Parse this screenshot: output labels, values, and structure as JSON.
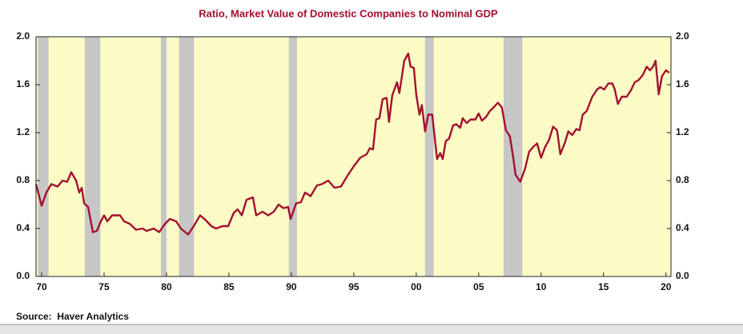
{
  "chart_data": {
    "type": "line",
    "title": "Ratio, Market Value of Domestic Companies to Nominal GDP",
    "source": "Source:  Haver Analytics",
    "x": [
      1969.55,
      1970.0,
      1970.38,
      1970.77,
      1971.28,
      1971.67,
      1972.05,
      1972.37,
      1972.76,
      1973.01,
      1973.21,
      1973.4,
      1973.72,
      1974.1,
      1974.42,
      1974.74,
      1975.0,
      1975.26,
      1975.64,
      1976.28,
      1976.6,
      1977.05,
      1977.56,
      1978.08,
      1978.4,
      1978.97,
      1979.42,
      1979.81,
      1980.26,
      1980.77,
      1981.15,
      1981.73,
      1982.18,
      1982.69,
      1983.14,
      1983.59,
      1983.97,
      1984.49,
      1984.94,
      1985.38,
      1985.7,
      1986.03,
      1986.41,
      1986.92,
      1987.18,
      1987.69,
      1988.14,
      1988.59,
      1988.97,
      1989.36,
      1989.74,
      1989.94,
      1990.38,
      1990.77,
      1991.09,
      1991.54,
      1992.05,
      1992.44,
      1992.95,
      1993.46,
      1993.97,
      1994.49,
      1995.0,
      1995.51,
      1996.03,
      1996.28,
      1996.54,
      1996.79,
      1997.05,
      1997.31,
      1997.63,
      1997.82,
      1998.08,
      1998.46,
      1998.65,
      1999.04,
      1999.36,
      1999.55,
      1999.81,
      2000.0,
      2000.26,
      2000.45,
      2000.71,
      2000.96,
      2001.28,
      2001.67,
      2001.92,
      2002.12,
      2002.37,
      2002.63,
      2002.95,
      2003.21,
      2003.53,
      2003.72,
      2004.04,
      2004.36,
      2004.74,
      2005.0,
      2005.26,
      2005.58,
      2005.9,
      2006.28,
      2006.54,
      2006.86,
      2007.18,
      2007.5,
      2007.76,
      2007.95,
      2008.33,
      2008.72,
      2009.04,
      2009.36,
      2009.68,
      2010.0,
      2010.32,
      2010.64,
      2010.96,
      2011.28,
      2011.54,
      2011.92,
      2012.18,
      2012.5,
      2012.82,
      2013.08,
      2013.33,
      2013.65,
      2014.1,
      2014.49,
      2014.74,
      2015.06,
      2015.38,
      2015.71,
      2015.9,
      2016.15,
      2016.47,
      2016.86,
      2017.18,
      2017.5,
      2017.82,
      2018.14,
      2018.46,
      2018.72,
      2018.97,
      2019.17,
      2019.42,
      2019.68,
      2020.0,
      2020.26
    ],
    "series": [
      {
        "color": "#a3102e",
        "values": [
          0.77,
          0.59,
          0.7,
          0.77,
          0.75,
          0.8,
          0.79,
          0.87,
          0.8,
          0.7,
          0.74,
          0.61,
          0.58,
          0.37,
          0.38,
          0.46,
          0.51,
          0.46,
          0.51,
          0.51,
          0.46,
          0.44,
          0.39,
          0.4,
          0.38,
          0.4,
          0.37,
          0.43,
          0.48,
          0.46,
          0.4,
          0.35,
          0.42,
          0.51,
          0.47,
          0.42,
          0.4,
          0.42,
          0.42,
          0.53,
          0.56,
          0.51,
          0.64,
          0.66,
          0.51,
          0.54,
          0.51,
          0.54,
          0.6,
          0.57,
          0.58,
          0.48,
          0.61,
          0.62,
          0.7,
          0.67,
          0.76,
          0.77,
          0.8,
          0.74,
          0.75,
          0.84,
          0.92,
          0.99,
          1.02,
          1.07,
          1.06,
          1.31,
          1.32,
          1.48,
          1.49,
          1.29,
          1.51,
          1.62,
          1.53,
          1.8,
          1.86,
          1.75,
          1.74,
          1.52,
          1.35,
          1.43,
          1.21,
          1.35,
          1.35,
          0.98,
          1.03,
          0.98,
          1.13,
          1.15,
          1.26,
          1.27,
          1.24,
          1.32,
          1.28,
          1.31,
          1.31,
          1.36,
          1.3,
          1.33,
          1.38,
          1.42,
          1.45,
          1.41,
          1.22,
          1.17,
          1.0,
          0.85,
          0.79,
          0.9,
          1.04,
          1.08,
          1.11,
          0.99,
          1.08,
          1.14,
          1.25,
          1.22,
          1.02,
          1.12,
          1.21,
          1.18,
          1.23,
          1.22,
          1.35,
          1.38,
          1.5,
          1.56,
          1.58,
          1.56,
          1.61,
          1.61,
          1.56,
          1.44,
          1.5,
          1.5,
          1.55,
          1.62,
          1.64,
          1.68,
          1.75,
          1.72,
          1.75,
          1.8,
          1.52,
          1.67,
          1.72,
          1.7
        ]
      }
    ],
    "shaded_ranges": [
      [
        1969.7,
        1970.55
      ],
      [
        1973.45,
        1974.7
      ],
      [
        1979.55,
        1980.0
      ],
      [
        1981.0,
        1982.2
      ],
      [
        1989.8,
        1990.45
      ],
      [
        2000.7,
        2001.4
      ],
      [
        2007.0,
        2008.5
      ]
    ],
    "shade_color": "#c6c6c6",
    "background_color": "#fcfbc6",
    "xlim": [
      1969.55,
      2020.4
    ],
    "xticks": [
      {
        "value": 1970,
        "label": "70"
      },
      {
        "value": 1975,
        "label": "75"
      },
      {
        "value": 1980,
        "label": "80"
      },
      {
        "value": 1985,
        "label": "85"
      },
      {
        "value": 1990,
        "label": "90"
      },
      {
        "value": 1995,
        "label": "95"
      },
      {
        "value": 2000,
        "label": "00"
      },
      {
        "value": 2005,
        "label": "05"
      },
      {
        "value": 2010,
        "label": "10"
      },
      {
        "value": 2015,
        "label": "15"
      },
      {
        "value": 2020,
        "label": "20"
      }
    ],
    "ylim": [
      0,
      2.0
    ],
    "yticks": [
      {
        "value": 0,
        "label": "0.0"
      },
      0.4,
      0.8,
      1.2,
      1.6,
      {
        "value": 2.0,
        "label": "2.0"
      }
    ],
    "y2lim": [
      0,
      2.0
    ],
    "y2ticks": [
      {
        "value": 0,
        "label": "0.0"
      },
      0.4,
      0.8,
      1.2,
      1.6,
      {
        "value": 2.0,
        "label": "2.0"
      }
    ]
  }
}
